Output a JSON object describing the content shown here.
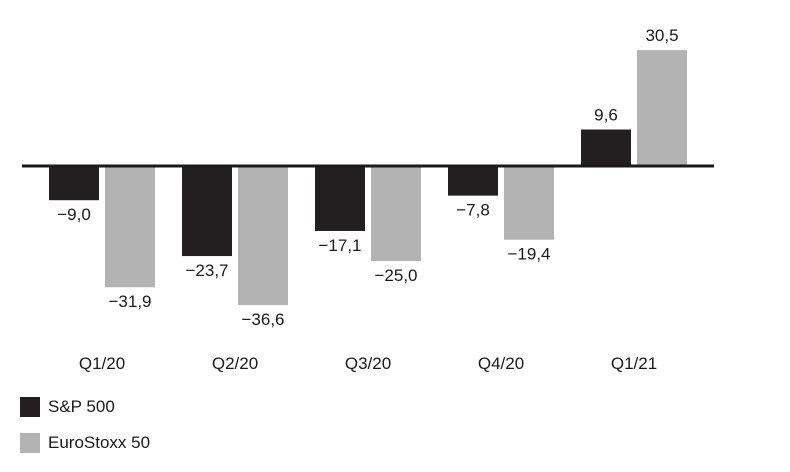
{
  "chart_data": {
    "type": "bar",
    "categories": [
      "Q1/20",
      "Q2/20",
      "Q3/20",
      "Q4/20",
      "Q1/21"
    ],
    "series": [
      {
        "name": "S&P 500",
        "values": [
          -9.0,
          -23.7,
          -17.1,
          -7.8,
          9.6
        ],
        "labels": [
          "−9,0",
          "−23,7",
          "−17,1",
          "−7,8",
          "9,6"
        ],
        "color": "#231f20"
      },
      {
        "name": "EuroStoxx 50",
        "values": [
          -31.9,
          -36.6,
          -25.0,
          -19.4,
          30.5
        ],
        "labels": [
          "−31,9",
          "−36,6",
          "−25,0",
          "−19,4",
          "30,5"
        ],
        "color": "#b3b3b3"
      }
    ],
    "title": "",
    "xlabel": "",
    "ylabel": "",
    "ylim": [
      -40,
      35
    ],
    "grid": false,
    "legend": "bottom-left"
  }
}
